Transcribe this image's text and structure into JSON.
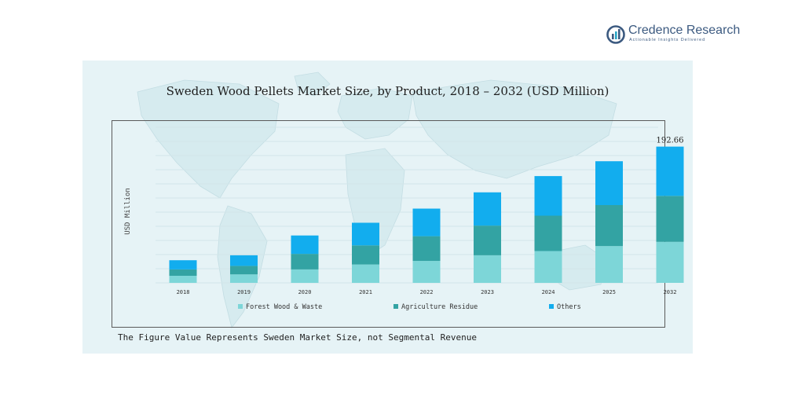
{
  "brand": {
    "name": "Credence Research",
    "tagline": "Actionable Insights Delivered"
  },
  "chart_title": "Sweden Wood Pellets Market Size, by Product, 2018  –  2032 (USD Million)",
  "footnote": "The Figure Value Represents Sweden Market Size, not Segmental Revenue",
  "chart_data": {
    "type": "bar",
    "stacked": true,
    "title": "Sweden Wood Pellets Market Size, by Product, 2018  –  2032 (USD Million)",
    "xlabel": "",
    "ylabel": "USD Million",
    "ylim": [
      0,
      220
    ],
    "grid": true,
    "legend_position": "bottom",
    "categories": [
      "2018",
      "2019",
      "2020",
      "2021",
      "2022",
      "2023",
      "2024",
      "2025",
      "2032"
    ],
    "series": [
      {
        "name": "Forest Wood & Waste",
        "color": "#7dd6d8",
        "values": [
          10,
          12,
          19,
          26,
          31,
          39,
          45,
          52,
          58
        ]
      },
      {
        "name": "Agriculture Residue",
        "color": "#33a3a3",
        "values": [
          9,
          12,
          22,
          27,
          35,
          42,
          50,
          58,
          65
        ]
      },
      {
        "name": "Others",
        "color": "#12adee",
        "values": [
          13,
          15,
          26,
          32,
          39,
          47,
          56,
          62,
          69.66
        ]
      }
    ],
    "data_labels": [
      {
        "category": "2032",
        "text": "192.66"
      }
    ]
  }
}
